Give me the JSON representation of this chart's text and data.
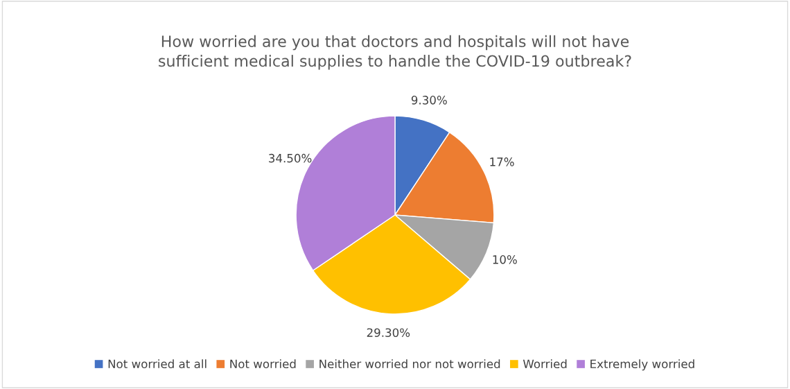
{
  "chart_data": {
    "type": "pie",
    "title": "How worried are you that doctors and hospitals will not have\nsufficient medical supplies to handle the COVID-19 outbreak?",
    "categories": [
      "Not worried at all",
      "Not worried",
      "Neither worried nor not worried",
      "Worried",
      "Extremely worried"
    ],
    "values": [
      9.3,
      17,
      10,
      29.3,
      34.5
    ],
    "value_labels": [
      "9.30%",
      "17%",
      "10%",
      "29.30%",
      "34.50%"
    ],
    "colors": [
      "#4472c4",
      "#ed7d31",
      "#a5a5a5",
      "#ffc000",
      "#b07fd8"
    ],
    "legend": "bottom"
  }
}
